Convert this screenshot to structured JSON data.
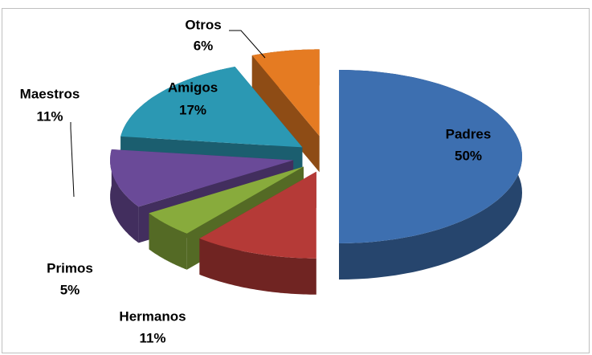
{
  "chart_data": {
    "type": "pie3d",
    "categories": [
      "Padres",
      "Hermanos",
      "Primos",
      "Maestros",
      "Amigos",
      "Otros"
    ],
    "values": [
      50,
      11,
      5,
      11,
      17,
      6
    ],
    "value_labels": [
      "50%",
      "11%",
      "5%",
      "11%",
      "17%",
      "6%"
    ],
    "colors": [
      "#3d6fb0",
      "#b53a37",
      "#88ab3c",
      "#6a4a98",
      "#2b98b3",
      "#e57b22"
    ]
  }
}
